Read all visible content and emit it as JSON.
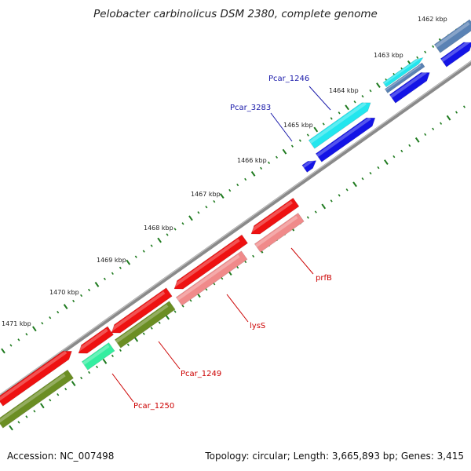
{
  "title": "Pelobacter carbinolicus DSM 2380, complete genome",
  "footer": {
    "accession": "Accession: NC_007498",
    "topology": "Topology: circular; Length: 3,665,893 bp; Genes: 3,415"
  },
  "ruler": [
    "1462 kbp",
    "1463 kbp",
    "1464 kbp",
    "1465 kbp",
    "1466 kbp",
    "1467 kbp",
    "1468 kbp",
    "1469 kbp",
    "1470 kbp",
    "1471 kbp"
  ],
  "gene_labels": {
    "top": [
      "Pcar_1246",
      "Pcar_3283"
    ],
    "bottom": [
      "prfB",
      "lysS",
      "Pcar_1249",
      "Pcar_1250"
    ]
  },
  "colors": {
    "backbone": "#8a8a8a",
    "red": "#ee1111",
    "pink": "#f08a8a",
    "olive": "#6b8e23",
    "mint": "#33eea0",
    "blue": "#1414e6",
    "cyan": "#22e6ee",
    "steel": "#5a82b4",
    "label_blue": "#1a1aaa",
    "label_red": "#cc0000",
    "tick": "#1e7a1e"
  }
}
